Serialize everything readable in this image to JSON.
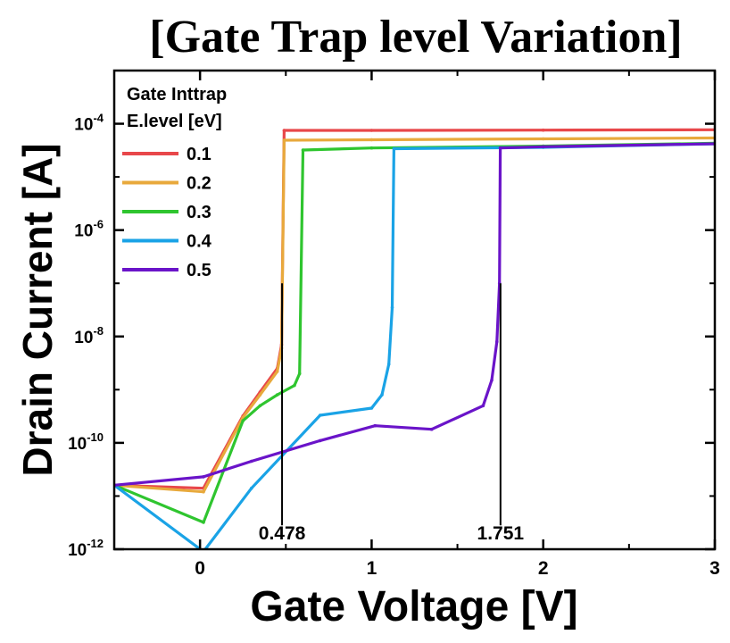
{
  "chart_data": {
    "type": "line",
    "title": "[Gate Trap level Variation]",
    "xlabel": "Gate Voltage [V]",
    "ylabel": "Drain Current [A]",
    "xlim": [
      -0.5,
      3
    ],
    "ylim_log10": [
      -12,
      -3
    ],
    "y_scale": "log",
    "x_ticks": [
      0,
      1,
      2,
      3
    ],
    "x_tick_labels": [
      "0",
      "1",
      "2",
      "3"
    ],
    "y_ticks_log10": [
      -12,
      -10,
      -8,
      -6,
      -4
    ],
    "y_tick_labels": [
      {
        "base": "10",
        "exp": "-12"
      },
      {
        "base": "10",
        "exp": "-10"
      },
      {
        "base": "10",
        "exp": "-8"
      },
      {
        "base": "10",
        "exp": "-6"
      },
      {
        "base": "10",
        "exp": "-4"
      }
    ],
    "legend": {
      "title_line1": "Gate Inttrap",
      "title_line2": "E.level [eV]",
      "placement": "top-left"
    },
    "series": [
      {
        "name": "0.1",
        "color": "#e8474a",
        "points": [
          [
            -0.5,
            1.6e-11
          ],
          [
            0.02,
            1.4e-11
          ],
          [
            0.25,
            3.2e-10
          ],
          [
            0.35,
            9e-10
          ],
          [
            0.45,
            2.5e-09
          ],
          [
            0.475,
            7e-09
          ],
          [
            0.49,
            7.5e-05
          ],
          [
            1.0,
            7.5e-05
          ],
          [
            2.0,
            7.6e-05
          ],
          [
            3.0,
            7.7e-05
          ]
        ]
      },
      {
        "name": "0.2",
        "color": "#e8a93c",
        "points": [
          [
            -0.5,
            1.6e-11
          ],
          [
            0.02,
            1.2e-11
          ],
          [
            0.25,
            3e-10
          ],
          [
            0.35,
            8e-10
          ],
          [
            0.45,
            2.2e-09
          ],
          [
            0.475,
            6e-09
          ],
          [
            0.49,
            4.9e-05
          ],
          [
            1.0,
            5e-05
          ],
          [
            2.0,
            5.2e-05
          ],
          [
            3.0,
            5.4e-05
          ]
        ]
      },
      {
        "name": "0.3",
        "color": "#2fc52f",
        "points": [
          [
            -0.5,
            1.6e-11
          ],
          [
            0.02,
            3.2e-12
          ],
          [
            0.25,
            2.6e-10
          ],
          [
            0.35,
            5e-10
          ],
          [
            0.45,
            8e-10
          ],
          [
            0.55,
            1.2e-09
          ],
          [
            0.58,
            2e-09
          ],
          [
            0.6,
            3.2e-05
          ],
          [
            1.0,
            3.5e-05
          ],
          [
            2.0,
            3.8e-05
          ],
          [
            3.0,
            4.3e-05
          ]
        ]
      },
      {
        "name": "0.4",
        "color": "#1aa3e6",
        "points": [
          [
            -0.5,
            1.6e-11
          ],
          [
            0.02,
            9e-13
          ],
          [
            0.3,
            1.4e-11
          ],
          [
            0.7,
            3.3e-10
          ],
          [
            1.0,
            4.5e-10
          ],
          [
            1.06,
            8e-10
          ],
          [
            1.1,
            3e-09
          ],
          [
            1.12,
            3.5e-08
          ],
          [
            1.13,
            3.4e-05
          ],
          [
            2.0,
            3.6e-05
          ],
          [
            3.0,
            4.2e-05
          ]
        ]
      },
      {
        "name": "0.5",
        "color": "#6a14c9",
        "points": [
          [
            -0.5,
            1.6e-11
          ],
          [
            0.02,
            2.3e-11
          ],
          [
            0.3,
            4.5e-11
          ],
          [
            0.7,
            1.1e-10
          ],
          [
            1.02,
            2.1e-10
          ],
          [
            1.35,
            1.8e-10
          ],
          [
            1.65,
            5e-10
          ],
          [
            1.7,
            1.5e-09
          ],
          [
            1.73,
            8e-09
          ],
          [
            1.745,
            1e-07
          ],
          [
            1.75,
            3.5e-05
          ],
          [
            2.0,
            3.7e-05
          ],
          [
            3.0,
            4.2e-05
          ]
        ]
      }
    ],
    "annotations": [
      {
        "label": "0.478",
        "x": 0.478,
        "line_from_log10": -11.55,
        "line_to_log10": -7.0
      },
      {
        "label": "1.751",
        "x": 1.751,
        "line_from_log10": -11.55,
        "line_to_log10": -7.0
      }
    ]
  }
}
